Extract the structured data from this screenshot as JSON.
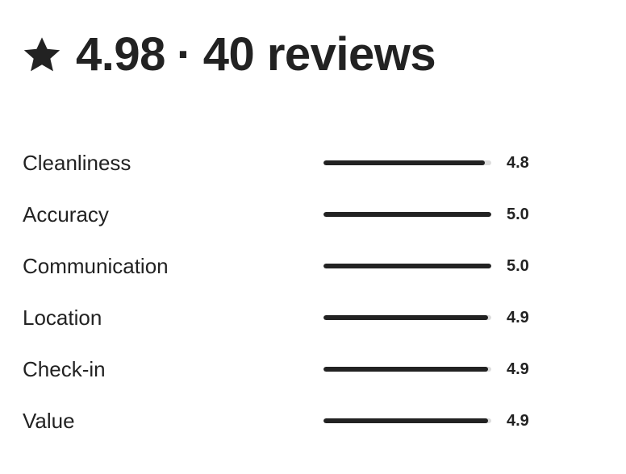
{
  "header": {
    "star_icon": "star-icon",
    "rating": "4.98",
    "separator": "·",
    "reviews": "40 reviews"
  },
  "rating_max": 5,
  "categories": [
    {
      "label": "Cleanliness",
      "value": "4.8",
      "score": 4.8
    },
    {
      "label": "Accuracy",
      "value": "5.0",
      "score": 5.0
    },
    {
      "label": "Communication",
      "value": "5.0",
      "score": 5.0
    },
    {
      "label": "Location",
      "value": "4.9",
      "score": 4.9
    },
    {
      "label": "Check-in",
      "value": "4.9",
      "score": 4.9
    },
    {
      "label": "Value",
      "value": "4.9",
      "score": 4.9
    }
  ],
  "colors": {
    "text": "#222222",
    "bar_fill": "#222222",
    "bar_track": "#dddddd"
  }
}
